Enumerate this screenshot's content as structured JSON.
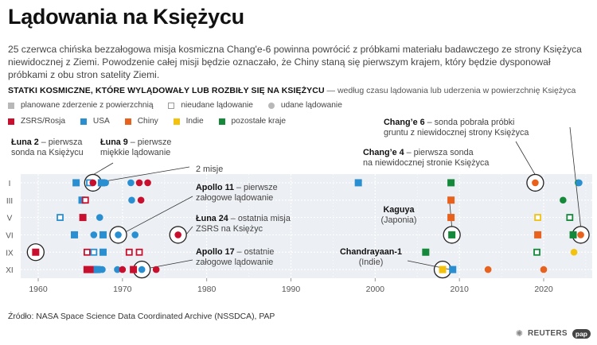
{
  "title": "Lądowania na Księżycu",
  "intro": "25 czerwca chińska bezzałogowa misja kosmiczna Chang'e-6 powinna powrócić z próbkami materiału badawczego ze strony Księżyca niewidocznej z Ziemi. Powodzenie całej misji będzie oznaczało, że Chiny staną się pierwszym krajem, który będzie dysponował próbkami z obu stron satelity Ziemi.",
  "subtitle_bold": "STATKI KOSMICZNE, KTÓRE WYLĄDOWAŁY LUB ROZBIŁY SIĘ NA KSIĘŻYCU",
  "subtitle_rest": " — według czasu lądowania lub uderzenia w powierzchnię Księżyca",
  "legend_types": {
    "planned": "planowane zderzenie z powierzchnią",
    "failed": "nieudane lądowanie",
    "success": "udane lądowanie"
  },
  "legend_countries": {
    "ussr": "ZSRS/Rosja",
    "usa": "USA",
    "china": "Chiny",
    "india": "Indie",
    "other": "pozostałe kraje"
  },
  "colors": {
    "ussr": "#c8102e",
    "usa": "#2a8fd1",
    "china": "#e8611d",
    "india": "#f2c20f",
    "other": "#14893a",
    "legend_gray": "#b8b8b8",
    "grid_bg": "#eceff3"
  },
  "annotations": {
    "luna2_bold": "Łuna 2",
    "luna2_rest": " – pierwsza",
    "luna2_line2": "sonda na Księżycu",
    "luna9_bold": "Łuna 9",
    "luna9_rest": " – pierwsze",
    "luna9_line2": "miękkie lądowanie",
    "two_missions": "2 misje",
    "apollo11_bold": "Apollo 11",
    "apollo11_rest": " – pierwsze",
    "apollo11_line2": "załogowe lądowanie",
    "luna24_bold": "Łuna 24",
    "luna24_rest": " – ostatnia misja",
    "luna24_line2": "ZSRS na Księżyc",
    "apollo17_bold": "Apollo 17",
    "apollo17_rest": " – ostatnie",
    "apollo17_line2": "załogowe lądowanie",
    "change6_bold": "Chang’e 6",
    "change6_rest": " – sonda pobrała próbki",
    "change6_line2": "gruntu z niewidocznej strony Księżyca",
    "change4_bold": "Chang’e 4",
    "change4_rest": " – pierwsza sonda",
    "change4_line2": "na niewidocznej stronie Księżyca",
    "kaguya_bold": "Kaguya",
    "kaguya_line2": "(Japonia)",
    "chandrayaan_bold": "Chandrayaan-1",
    "chandrayaan_line2": "(Indie)"
  },
  "chart_data": {
    "type": "scatter",
    "x_ticks": [
      "1960",
      "1970",
      "1980",
      "1990",
      "2000",
      "2010",
      "2020"
    ],
    "xlim": [
      1957,
      2025
    ],
    "y_rows": [
      "I",
      "III",
      "V",
      "VI",
      "IX",
      "XI"
    ],
    "points": [
      {
        "year": 1959.7,
        "month": "IX",
        "country": "ussr",
        "kind": "planned"
      },
      {
        "year": 1964.5,
        "month": "I",
        "country": "usa",
        "kind": "planned"
      },
      {
        "year": 1964.3,
        "month": "VI",
        "country": "usa",
        "kind": "planned"
      },
      {
        "year": 1965.2,
        "month": "III",
        "country": "usa",
        "kind": "planned"
      },
      {
        "year": 1965.3,
        "month": "V",
        "country": "ussr",
        "kind": "planned"
      },
      {
        "year": 1965.8,
        "month": "XI",
        "country": "ussr",
        "kind": "planned"
      },
      {
        "year": 1965.6,
        "month": "III",
        "country": "ussr",
        "kind": "failed"
      },
      {
        "year": 1966.1,
        "month": "I",
        "country": "usa",
        "kind": "failed"
      },
      {
        "year": 1966.5,
        "month": "I",
        "country": "ussr",
        "kind": "success"
      },
      {
        "year": 1965.8,
        "month": "IX",
        "country": "ussr",
        "kind": "failed"
      },
      {
        "year": 1966.6,
        "month": "VI",
        "country": "usa",
        "kind": "success"
      },
      {
        "year": 1966.6,
        "month": "IX",
        "country": "usa",
        "kind": "failed"
      },
      {
        "year": 1966.6,
        "month": "XI",
        "country": "ussr",
        "kind": "planned"
      },
      {
        "year": 1967.3,
        "month": "V",
        "country": "usa",
        "kind": "success"
      },
      {
        "year": 1967.7,
        "month": "IX",
        "country": "usa",
        "kind": "planned"
      },
      {
        "year": 1967.0,
        "month": "XI",
        "country": "usa",
        "kind": "planned"
      },
      {
        "year": 1967.6,
        "month": "XI",
        "country": "usa",
        "kind": "success"
      },
      {
        "year": 1962.6,
        "month": "V",
        "country": "usa",
        "kind": "failed"
      },
      {
        "year": 1968.0,
        "month": "I",
        "country": "usa",
        "kind": "success"
      },
      {
        "year": 1967.7,
        "month": "VI",
        "country": "usa",
        "kind": "planned"
      },
      {
        "year": 1969.5,
        "month": "VI",
        "country": "usa",
        "kind": "success"
      },
      {
        "year": 1969.4,
        "month": "XI",
        "country": "usa",
        "kind": "success"
      },
      {
        "year": 1970.0,
        "month": "XI",
        "country": "ussr",
        "kind": "success"
      },
      {
        "year": 1970.8,
        "month": "IX",
        "country": "ussr",
        "kind": "failed"
      },
      {
        "year": 1971.0,
        "month": "I",
        "country": "usa",
        "kind": "success"
      },
      {
        "year": 1971.1,
        "month": "III",
        "country": "usa",
        "kind": "success"
      },
      {
        "year": 1971.5,
        "month": "VI",
        "country": "usa",
        "kind": "success"
      },
      {
        "year": 1971.3,
        "month": "XI",
        "country": "ussr",
        "kind": "planned"
      },
      {
        "year": 1972.0,
        "month": "I",
        "country": "ussr",
        "kind": "success"
      },
      {
        "year": 1972.2,
        "month": "III",
        "country": "ussr",
        "kind": "success"
      },
      {
        "year": 1972.0,
        "month": "IX",
        "country": "ussr",
        "kind": "failed"
      },
      {
        "year": 1972.3,
        "month": "XI",
        "country": "usa",
        "kind": "success"
      },
      {
        "year": 1973.0,
        "month": "I",
        "country": "ussr",
        "kind": "success"
      },
      {
        "year": 1974.0,
        "month": "XI",
        "country": "ussr",
        "kind": "success"
      },
      {
        "year": 1976.6,
        "month": "VI",
        "country": "ussr",
        "kind": "success"
      },
      {
        "year": 1967.5,
        "month": "I",
        "country": "usa",
        "kind": "planned"
      },
      {
        "year": 1998.0,
        "month": "I",
        "country": "usa",
        "kind": "planned"
      },
      {
        "year": 2006.0,
        "month": "IX",
        "country": "other",
        "kind": "planned"
      },
      {
        "year": 2009.0,
        "month": "I",
        "country": "other",
        "kind": "planned"
      },
      {
        "year": 2009.0,
        "month": "III",
        "country": "china",
        "kind": "planned"
      },
      {
        "year": 2009.0,
        "month": "V",
        "country": "china",
        "kind": "planned"
      },
      {
        "year": 2009.1,
        "month": "VI",
        "country": "other",
        "kind": "planned"
      },
      {
        "year": 2009.2,
        "month": "XI",
        "country": "usa",
        "kind": "planned"
      },
      {
        "year": 2008.0,
        "month": "XI",
        "country": "india",
        "kind": "planned"
      },
      {
        "year": 2013.4,
        "month": "XI",
        "country": "china",
        "kind": "success"
      },
      {
        "year": 2019.0,
        "month": "I",
        "country": "china",
        "kind": "success"
      },
      {
        "year": 2019.3,
        "month": "V",
        "country": "india",
        "kind": "failed"
      },
      {
        "year": 2019.3,
        "month": "VI",
        "country": "china",
        "kind": "planned"
      },
      {
        "year": 2019.2,
        "month": "IX",
        "country": "other",
        "kind": "failed"
      },
      {
        "year": 2020.0,
        "month": "XI",
        "country": "china",
        "kind": "success"
      },
      {
        "year": 2022.3,
        "month": "III",
        "country": "other",
        "kind": "success"
      },
      {
        "year": 2023.1,
        "month": "V",
        "country": "other",
        "kind": "failed"
      },
      {
        "year": 2023.5,
        "month": "VI",
        "country": "other",
        "kind": "planned"
      },
      {
        "year": 2023.6,
        "month": "IX",
        "country": "india",
        "kind": "success"
      },
      {
        "year": 2024.1,
        "month": "I",
        "country": "other",
        "kind": "success"
      },
      {
        "year": 2024.2,
        "month": "I",
        "country": "usa",
        "kind": "success"
      },
      {
        "year": 2024.4,
        "month": "VI",
        "country": "china",
        "kind": "success"
      }
    ],
    "highlighted": [
      {
        "year": 1959.7,
        "month": "IX"
      },
      {
        "year": 1966.5,
        "month": "I"
      },
      {
        "year": 1969.5,
        "month": "VI"
      },
      {
        "year": 1976.6,
        "month": "VI"
      },
      {
        "year": 1972.3,
        "month": "XI"
      },
      {
        "year": 2019.0,
        "month": "I"
      },
      {
        "year": 2024.4,
        "month": "VI"
      },
      {
        "year": 2009.1,
        "month": "VI"
      },
      {
        "year": 2008.0,
        "month": "XI"
      }
    ]
  },
  "source": "Źródło: NASA Space Science Data Coordinated Archive (NSSDCA), PAP",
  "logos": {
    "reuters": "REUTERS",
    "pap": "pap"
  }
}
